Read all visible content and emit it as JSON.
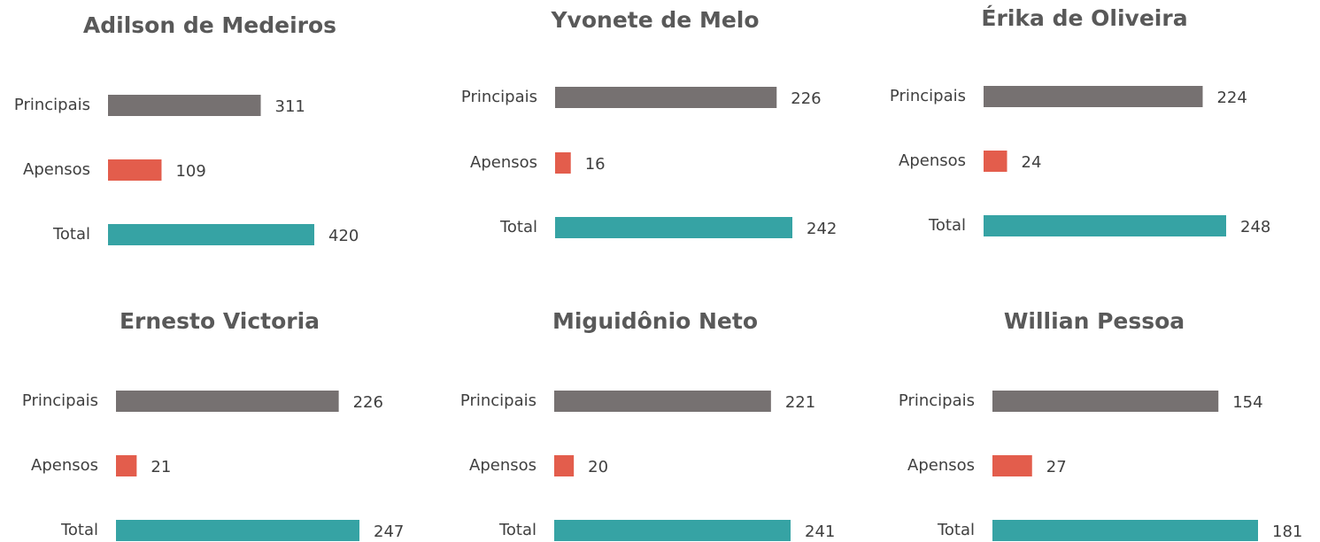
{
  "chart_data": [
    {
      "type": "bar",
      "title": "Adilson de Medeiros",
      "categories": [
        "Principais",
        "Apensos",
        "Total"
      ],
      "values": [
        311,
        109,
        420
      ],
      "colors": [
        "#767171",
        "#e35d4c",
        "#36a3a4"
      ]
    },
    {
      "type": "bar",
      "title": "Yvonete de Melo",
      "categories": [
        "Principais",
        "Apensos",
        "Total"
      ],
      "values": [
        226,
        16,
        242
      ],
      "colors": [
        "#767171",
        "#e35d4c",
        "#36a3a4"
      ]
    },
    {
      "type": "bar",
      "title": "Érika de Oliveira",
      "categories": [
        "Principais",
        "Apensos",
        "Total"
      ],
      "values": [
        224,
        24,
        248
      ],
      "colors": [
        "#767171",
        "#e35d4c",
        "#36a3a4"
      ]
    },
    {
      "type": "bar",
      "title": "Ernesto Victoria",
      "categories": [
        "Principais",
        "Apensos",
        "Total"
      ],
      "values": [
        226,
        21,
        247
      ],
      "colors": [
        "#767171",
        "#e35d4c",
        "#36a3a4"
      ]
    },
    {
      "type": "bar",
      "title": "Miguidônio Neto",
      "categories": [
        "Principais",
        "Apensos",
        "Total"
      ],
      "values": [
        221,
        20,
        241
      ],
      "colors": [
        "#767171",
        "#e35d4c",
        "#36a3a4"
      ]
    },
    {
      "type": "bar",
      "title": "Willian Pessoa",
      "categories": [
        "Principais",
        "Apensos",
        "Total"
      ],
      "values": [
        154,
        27,
        181
      ],
      "colors": [
        "#767171",
        "#e35d4c",
        "#36a3a4"
      ]
    }
  ]
}
